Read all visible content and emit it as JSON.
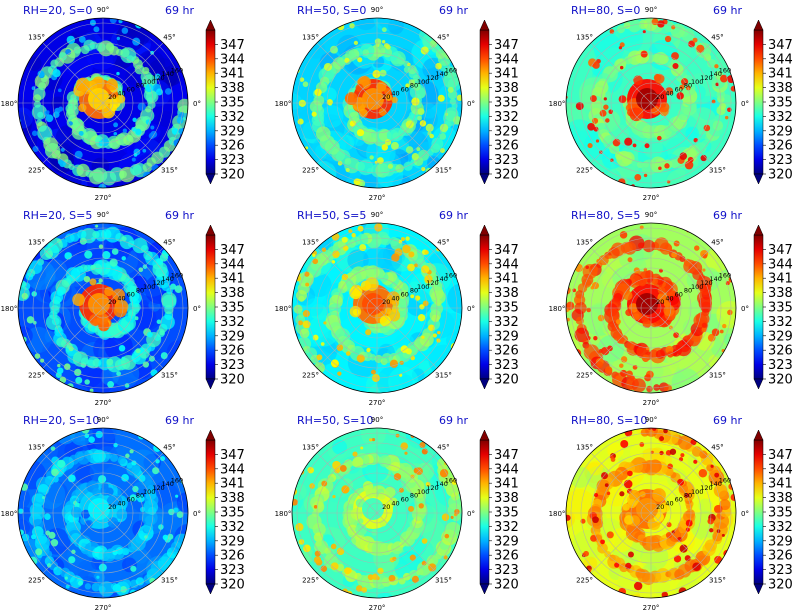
{
  "chart_data": {
    "type": "heatmap",
    "projection": "polar",
    "angle_tick_labels": [
      "0°",
      "45°",
      "90°",
      "135°",
      "180°",
      "225°",
      "270°",
      "315°"
    ],
    "radial_tick_labels": [
      "20",
      "40",
      "60",
      "80",
      "100",
      "120",
      "140",
      "160"
    ],
    "colorbar": {
      "colormap": "jet",
      "range": [
        320,
        350
      ],
      "tick_labels": [
        "320",
        "323",
        "326",
        "329",
        "332",
        "335",
        "338",
        "341",
        "344",
        "347"
      ],
      "extend": "both"
    },
    "grid": true,
    "panels": [
      {
        "title": "RH=20, S=0",
        "time": "69 hr",
        "background": 323,
        "center": 340,
        "core": 343,
        "spiral": 334,
        "speckle": 329
      },
      {
        "title": "RH=50, S=0",
        "time": "69 hr",
        "background": 330,
        "center": 342,
        "core": 345,
        "spiral": 334,
        "speckle": 337
      },
      {
        "title": "RH=80, S=0",
        "time": "69 hr",
        "background": 333,
        "center": 349,
        "core": 346,
        "spiral": 335,
        "speckle": 345
      },
      {
        "title": "RH=20, S=5",
        "time": "69 hr",
        "background": 326,
        "center": 342,
        "core": 345,
        "spiral": 332,
        "speckle": 333
      },
      {
        "title": "RH=50, S=5",
        "time": "69 hr",
        "background": 331,
        "center": 344,
        "core": 343,
        "spiral": 335,
        "speckle": 340
      },
      {
        "title": "RH=80, S=5",
        "time": "69 hr",
        "background": 336,
        "center": 349,
        "core": 346,
        "spiral": 345,
        "speckle": 344
      },
      {
        "title": "RH=20, S=10",
        "time": "69 hr",
        "background": 327,
        "center": 331,
        "core": 330,
        "spiral": 330,
        "speckle": 332
      },
      {
        "title": "RH=50, S=10",
        "time": "69 hr",
        "background": 333,
        "center": 333,
        "core": 338,
        "spiral": 336,
        "speckle": 341
      },
      {
        "title": "RH=80, S=10",
        "time": "69 hr",
        "background": 338,
        "center": 342,
        "core": 343,
        "spiral": 342,
        "speckle": 346
      }
    ]
  }
}
